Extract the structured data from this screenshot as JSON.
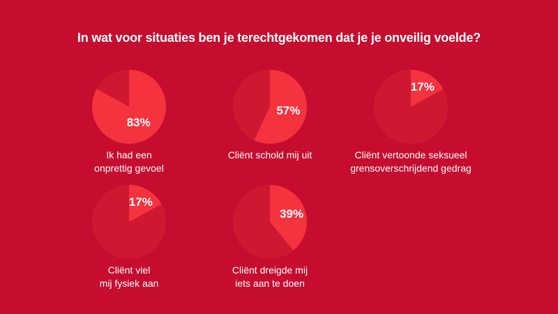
{
  "title": "In wat voor situaties ben je terechtgekomen dat je je onveilig voelde?",
  "colors": {
    "background": "#C60D2F",
    "slice_highlight": "#F5333F",
    "slice_rest": "#D01732",
    "text": "#FFFFFF"
  },
  "chart_data": {
    "type": "pie",
    "title": "In wat voor situaties ben je terechtgekomen dat je je onveilig voelde?",
    "unit": "%",
    "legend": "none",
    "layout_rows": [
      3,
      2
    ],
    "pies": [
      {
        "label": "Ik had een\nonprettig gevoel",
        "value": 83,
        "display_value": "83%",
        "row": 1
      },
      {
        "label": "Cliënt schold mij uit",
        "value": 57,
        "display_value": "57%",
        "row": 1
      },
      {
        "label": "Cliënt vertoonde seksueel\ngrensoverschrijdend gedrag",
        "value": 17,
        "display_value": "17%",
        "row": 1
      },
      {
        "label": "Cliënt viel\nmij fysiek aan",
        "value": 17,
        "display_value": "17%",
        "row": 2
      },
      {
        "label": "Cliënt dreigde mij\niets aan te doen",
        "value": 39,
        "display_value": "39%",
        "row": 2
      }
    ]
  }
}
